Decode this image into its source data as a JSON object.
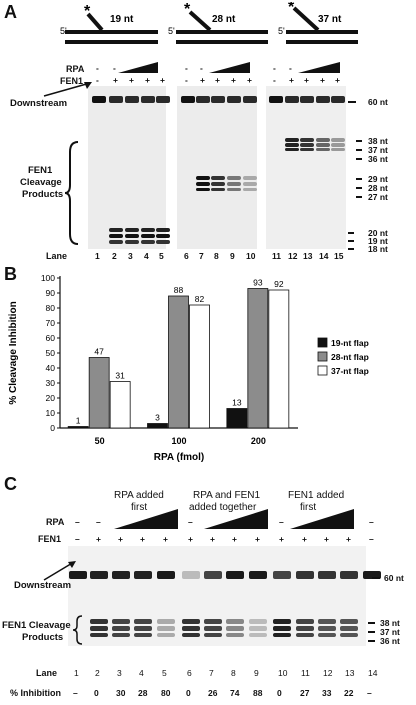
{
  "panelA": {
    "letter": "A",
    "substrates": [
      {
        "label": "19 nt",
        "marker": "*",
        "end": "5'"
      },
      {
        "label": "28 nt",
        "marker": "*",
        "end": "5'"
      },
      {
        "label": "37 nt",
        "marker": "*",
        "end": "5'"
      }
    ],
    "rpa_label": "RPA",
    "fen1_label": "FEN1",
    "rpa_signs": [
      "-",
      "-",
      "",
      "",
      "",
      "-",
      "-",
      "",
      "",
      "",
      "-",
      "-",
      "",
      "",
      ""
    ],
    "fen1_signs": [
      "-",
      "+",
      "+",
      "+",
      "+",
      "-",
      "+",
      "+",
      "+",
      "+",
      "-",
      "+",
      "+",
      "+",
      "+"
    ],
    "downstream_label": "Downstream",
    "cleavage_label": [
      "FEN1",
      "Cleavage",
      "Products"
    ],
    "lane_label": "Lane",
    "lanes": [
      "1",
      "2",
      "3",
      "4",
      "5",
      "6",
      "7",
      "8",
      "9",
      "10",
      "11",
      "12",
      "13",
      "14",
      "15"
    ],
    "size_markers": [
      "60 nt",
      "38 nt",
      "37 nt",
      "36 nt",
      "29 nt",
      "28 nt",
      "27 nt",
      "20 nt",
      "19 nt",
      "18 nt"
    ]
  },
  "panelB": {
    "letter": "B",
    "chart_data": {
      "type": "bar",
      "categories": [
        "50",
        "100",
        "200"
      ],
      "series": [
        {
          "name": "19-nt flap",
          "values": [
            1,
            3,
            13
          ],
          "color": "#111111"
        },
        {
          "name": "28-nt flap",
          "values": [
            47,
            88,
            93
          ],
          "color": "#8c8c8c"
        },
        {
          "name": "37-nt flap",
          "values": [
            31,
            82,
            92
          ],
          "color": "#ffffff"
        }
      ],
      "xlabel": "RPA (fmol)",
      "ylabel": "% Cleavage Inhibition",
      "ylim": [
        0,
        100
      ],
      "yticks": [
        0,
        10,
        20,
        30,
        40,
        50,
        60,
        70,
        80,
        90,
        100
      ],
      "legend": "right"
    }
  },
  "panelC": {
    "letter": "C",
    "groups": [
      "RPA added first",
      "RPA and FEN1 added together",
      "FEN1 added first"
    ],
    "group_lines": [
      [
        "RPA added",
        "first"
      ],
      [
        "RPA and FEN1",
        "added together"
      ],
      [
        "FEN1 added",
        "first"
      ]
    ],
    "rpa_label": "RPA",
    "fen1_label": "FEN1",
    "rpa_signs": [
      "–",
      "–",
      "",
      "",
      "",
      "–",
      "",
      "",
      "",
      "–",
      "",
      "",
      "",
      "–"
    ],
    "fen1_signs": [
      "–",
      "+",
      "+",
      "+",
      "+",
      "+",
      "+",
      "+",
      "+",
      "+",
      "+",
      "+",
      "+",
      "–"
    ],
    "downstream_label": "Downstream",
    "cleavage_label": [
      "FEN1 Cleavage",
      "Products"
    ],
    "size_markers": [
      "60 nt",
      "38 nt",
      "37 nt",
      "36 nt"
    ],
    "lane_label": "Lane",
    "lanes": [
      "1",
      "2",
      "3",
      "4",
      "5",
      "6",
      "7",
      "8",
      "9",
      "10",
      "11",
      "12",
      "13",
      "14"
    ],
    "inhibition_label": "% Inhibition",
    "inhibition": [
      "–",
      "0",
      "30",
      "28",
      "80",
      "0",
      "26",
      "74",
      "88",
      "0",
      "27",
      "33",
      "22",
      "–"
    ]
  }
}
